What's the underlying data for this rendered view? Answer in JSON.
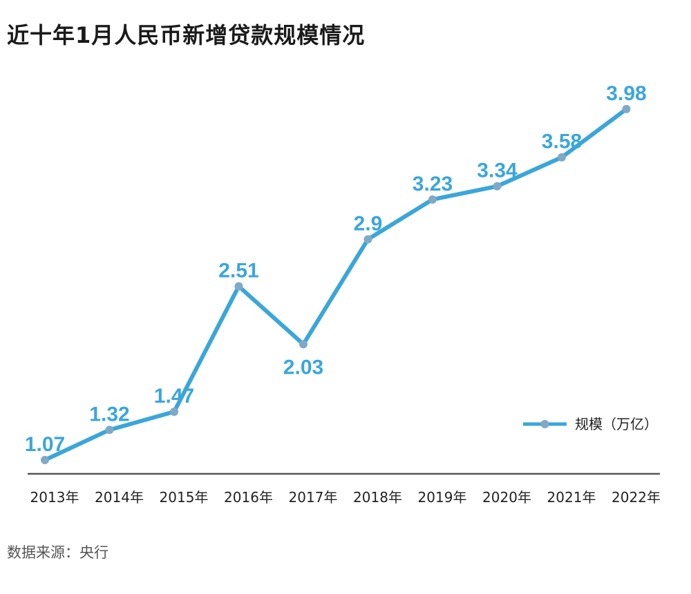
{
  "title": "近十年1月人民币新增贷款规模情况",
  "source": "数据来源：央行",
  "colors": {
    "line": "#3aa6da",
    "label": "#3aa6da",
    "marker": "#7fa9c6",
    "axis": "#555555"
  },
  "chart_data": {
    "type": "line",
    "title": "近十年1月人民币新增贷款规模情况",
    "categories": [
      "2013年",
      "2014年",
      "2015年",
      "2016年",
      "2017年",
      "2018年",
      "2019年",
      "2020年",
      "2021年",
      "2022年"
    ],
    "series": [
      {
        "name": "规模（万亿）",
        "values": [
          1.07,
          1.32,
          1.47,
          2.51,
          2.03,
          2.9,
          3.23,
          3.34,
          3.58,
          3.98
        ]
      }
    ],
    "data_labels": [
      "1.07",
      "1.32",
      "1.47",
      "2.51",
      "2.03",
      "2.9",
      "3.23",
      "3.34",
      "3.58",
      "3.98"
    ],
    "xlabel": "",
    "ylabel": "",
    "grid": false,
    "legend_position": "right"
  }
}
